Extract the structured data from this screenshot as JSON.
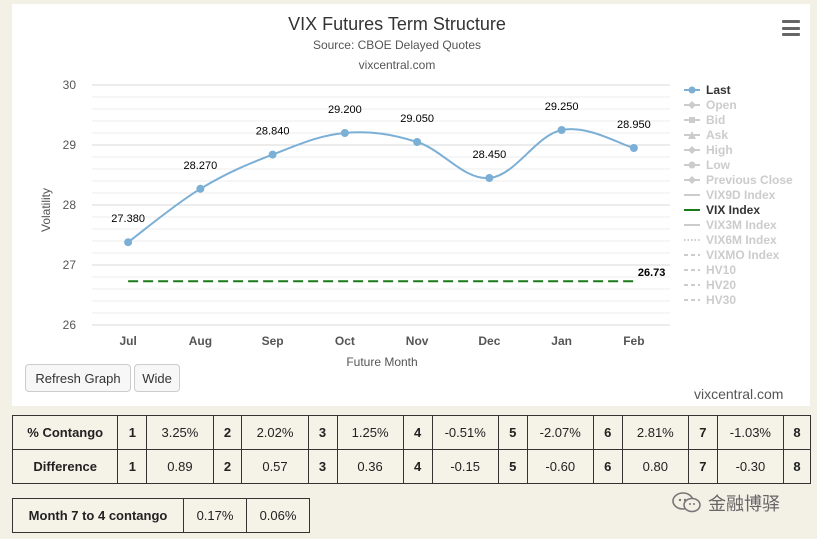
{
  "chart_data": {
    "type": "line",
    "title": "VIX Futures Term Structure",
    "subtitle": "Source: CBOE Delayed Quotes",
    "credit": "vixcentral.com",
    "xlabel": "Future Month",
    "ylabel": "Volatility",
    "ylim": [
      26,
      30
    ],
    "yticks": [
      26,
      27,
      28,
      29,
      30
    ],
    "categories": [
      "Jul",
      "Aug",
      "Sep",
      "Oct",
      "Nov",
      "Dec",
      "Jan",
      "Feb"
    ],
    "series": [
      {
        "name": "Last",
        "values": [
          27.38,
          28.27,
          28.84,
          29.2,
          29.05,
          28.45,
          29.25,
          28.95
        ],
        "labels": [
          "27.380",
          "28.270",
          "28.840",
          "29.200",
          "29.050",
          "28.450",
          "29.250",
          "28.950"
        ],
        "color": "#7cafd6"
      },
      {
        "name": "VIX Index",
        "value": 26.73,
        "label": "26.73",
        "color": "#1a7a1a"
      }
    ],
    "legend_placement": "right",
    "legend": [
      {
        "name": "Last",
        "active": true,
        "marker": "circle",
        "color": "#7cafd6"
      },
      {
        "name": "Open",
        "active": false,
        "marker": "diamond"
      },
      {
        "name": "Bid",
        "active": false,
        "marker": "square"
      },
      {
        "name": "Ask",
        "active": false,
        "marker": "triangle"
      },
      {
        "name": "High",
        "active": false,
        "marker": "diamond"
      },
      {
        "name": "Low",
        "active": false,
        "marker": "circle"
      },
      {
        "name": "Previous Close",
        "active": false,
        "marker": "diamond"
      },
      {
        "name": "VIX9D Index",
        "active": false,
        "marker": "line"
      },
      {
        "name": "VIX Index",
        "active": true,
        "marker": "line",
        "color": "#1a7a1a"
      },
      {
        "name": "VIX3M Index",
        "active": false,
        "marker": "line"
      },
      {
        "name": "VIX6M Index",
        "active": false,
        "marker": "dotted"
      },
      {
        "name": "VIXMO Index",
        "active": false,
        "marker": "dashed"
      },
      {
        "name": "HV10",
        "active": false,
        "marker": "dashed"
      },
      {
        "name": "HV20",
        "active": false,
        "marker": "dashed"
      },
      {
        "name": "HV30",
        "active": false,
        "marker": "dashed"
      }
    ],
    "grid": true
  },
  "buttons": {
    "refresh": "Refresh Graph",
    "wide": "Wide"
  },
  "table": {
    "contango_label": "% Contango",
    "difference_label": "Difference",
    "contango": [
      {
        "n": "1",
        "v": "3.25%"
      },
      {
        "n": "2",
        "v": "2.02%"
      },
      {
        "n": "3",
        "v": "1.25%"
      },
      {
        "n": "4",
        "v": "-0.51%"
      },
      {
        "n": "5",
        "v": "-2.07%"
      },
      {
        "n": "6",
        "v": "2.81%"
      },
      {
        "n": "7",
        "v": "-1.03%"
      },
      {
        "n": "8",
        "v": ""
      }
    ],
    "difference": [
      {
        "n": "1",
        "v": "0.89"
      },
      {
        "n": "2",
        "v": "0.57"
      },
      {
        "n": "3",
        "v": "0.36"
      },
      {
        "n": "4",
        "v": "-0.15"
      },
      {
        "n": "5",
        "v": "-0.60"
      },
      {
        "n": "6",
        "v": "0.80"
      },
      {
        "n": "7",
        "v": "-0.30"
      },
      {
        "n": "8",
        "v": ""
      }
    ]
  },
  "month_table": {
    "label": "Month 7 to 4 contango",
    "v1": "0.17%",
    "v2": "0.06%"
  },
  "watermark": "金融博驿",
  "colors": {
    "last": "#7cafd6",
    "vix": "#1a7a1a",
    "inactive": "#cccccc",
    "grid": "#e6e6e6"
  }
}
